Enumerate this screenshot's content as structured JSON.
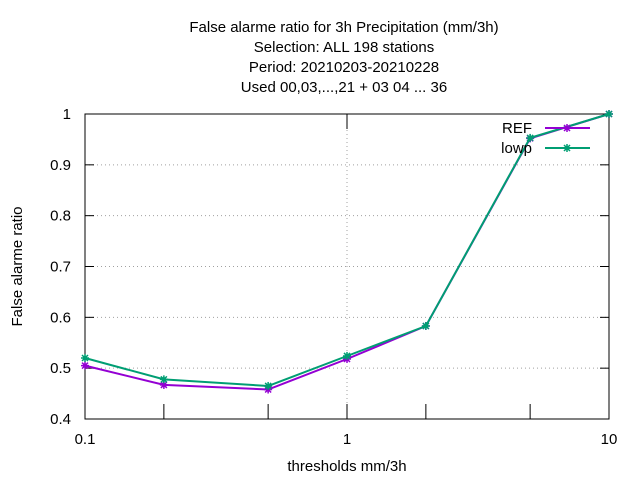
{
  "chart_data": {
    "type": "line",
    "title_lines": [
      "False alarme ratio  for 3h Precipitation (mm/3h)",
      "Selection: ALL    198 stations",
      "Period: 20210203-20210228",
      "Used  00,03,...,21  + 03 04 ... 36"
    ],
    "xlabel": "thresholds mm/3h",
    "ylabel": "False alarme ratio",
    "x_scale": "log",
    "xlim": [
      0.1,
      10
    ],
    "ylim": [
      0.4,
      1.0
    ],
    "x_ticks": [
      0.1,
      1,
      10
    ],
    "x_tick_labels": [
      "0.1",
      "1",
      "10"
    ],
    "y_ticks": [
      0.4,
      0.5,
      0.6,
      0.7,
      0.8,
      0.9,
      1.0
    ],
    "y_tick_labels": [
      "0.4",
      "0.5",
      "0.6",
      "0.7",
      "0.8",
      "0.9",
      "1"
    ],
    "x_minor_ticks": [
      0.2,
      0.5,
      2,
      5
    ],
    "grid": true,
    "legend_position": "top-right",
    "series": [
      {
        "name": "REF",
        "color": "#9400d3",
        "x": [
          0.1,
          0.2,
          0.5,
          1,
          2,
          5,
          10
        ],
        "y": [
          0.505,
          0.467,
          0.458,
          0.518,
          0.583,
          0.952,
          1.0
        ]
      },
      {
        "name": "lowp",
        "color": "#009e73",
        "x": [
          0.1,
          0.2,
          0.5,
          1,
          2,
          5,
          10
        ],
        "y": [
          0.52,
          0.478,
          0.465,
          0.524,
          0.583,
          0.953,
          1.0
        ]
      }
    ]
  }
}
